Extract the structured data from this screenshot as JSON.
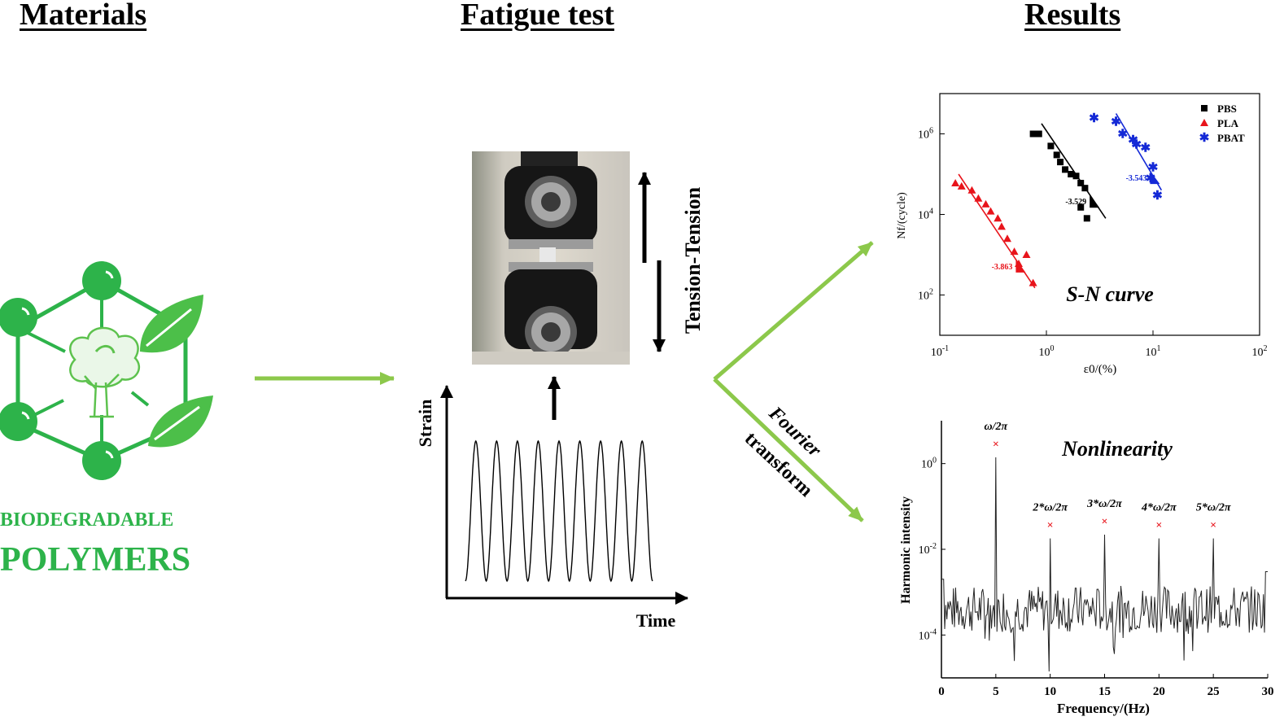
{
  "headers": {
    "materials": "Materials",
    "fatigue": "Fatigue test",
    "results": "Results"
  },
  "materials": {
    "line1": "BIODEGRADABLE",
    "line2": "POLYMERS",
    "color": "#2db34a",
    "leaf_color": "#4cbf49"
  },
  "fatigue": {
    "mode_label": "Tension-Tension",
    "y_axis": "Strain",
    "x_axis": "Time",
    "cycles": 9
  },
  "fourier": {
    "line1": "Fourier",
    "line2": "transform"
  },
  "arrow_color": "#8cc84b",
  "chart_data": [
    {
      "type": "scatter",
      "title": "S-N curve",
      "xlabel": "ε0/(%)",
      "ylabel": "Nf/(cycle)",
      "xscale": "log",
      "yscale": "log",
      "xlim": [
        0.1,
        100
      ],
      "ylim": [
        10,
        10000000
      ],
      "xticks": [
        "10-1",
        "100",
        "101",
        "102"
      ],
      "yticks": [
        "102",
        "104",
        "106"
      ],
      "legend_position": "top-right",
      "series": [
        {
          "name": "PBS",
          "marker": "square",
          "color": "#000000",
          "points": [
            [
              0.75,
              1000000
            ],
            [
              0.85,
              1000000
            ],
            [
              1.1,
              500000
            ],
            [
              1.25,
              300000
            ],
            [
              1.35,
              200000
            ],
            [
              1.5,
              130000
            ],
            [
              1.7,
              100000
            ],
            [
              1.9,
              90000
            ],
            [
              2.1,
              60000
            ],
            [
              2.3,
              45000
            ],
            [
              2.1,
              15000
            ],
            [
              2.4,
              8000
            ]
          ],
          "fit": [
            [
              0.9,
              1800000
            ],
            [
              3.6,
              8000
            ]
          ],
          "slope_label": "-3.529"
        },
        {
          "name": "PLA",
          "marker": "triangle",
          "color": "#e8141b",
          "points": [
            [
              0.14,
              60000
            ],
            [
              0.16,
              50000
            ],
            [
              0.2,
              40000
            ],
            [
              0.23,
              25000
            ],
            [
              0.27,
              18000
            ],
            [
              0.3,
              12000
            ],
            [
              0.35,
              8000
            ],
            [
              0.38,
              5000
            ],
            [
              0.43,
              2500
            ],
            [
              0.5,
              1200
            ],
            [
              0.55,
              600
            ],
            [
              0.65,
              1000
            ],
            [
              0.75,
              200
            ]
          ],
          "fit": [
            [
              0.15,
              100000
            ],
            [
              0.78,
              150
            ]
          ],
          "slope_label": "-3.863"
        },
        {
          "name": "PBAT",
          "marker": "star",
          "color": "#1429d6",
          "points": [
            [
              2.8,
              2500000
            ],
            [
              4.5,
              2000000
            ],
            [
              5.2,
              1000000
            ],
            [
              6.5,
              700000
            ],
            [
              7.0,
              550000
            ],
            [
              8.5,
              450000
            ],
            [
              10.0,
              150000
            ],
            [
              9.5,
              80000
            ],
            [
              11.0,
              30000
            ]
          ],
          "fit": [
            [
              4.5,
              3200000
            ],
            [
              12.0,
              40000
            ]
          ],
          "slope_label": "-3.543"
        }
      ]
    },
    {
      "type": "line",
      "title": "Nonlinearity",
      "xlabel": "Frequency/(Hz)",
      "ylabel": "Harmonic intensity",
      "yscale": "log",
      "xlim": [
        0,
        30
      ],
      "ylim": [
        1e-05,
        10
      ],
      "xticks": [
        0,
        5,
        10,
        15,
        20,
        25,
        30
      ],
      "yticks": [
        "100",
        "10-2",
        "10-4"
      ],
      "series": [
        {
          "name": "",
          "peaks": [
            {
              "x": 5,
              "y": 1.4,
              "label": "ω/2π"
            },
            {
              "x": 10,
              "y": 0.018,
              "label": "2*ω/2π"
            },
            {
              "x": 15,
              "y": 0.022,
              "label": "3*ω/2π"
            },
            {
              "x": 20,
              "y": 0.018,
              "label": "4*ω/2π"
            },
            {
              "x": 25,
              "y": 0.018,
              "label": "5*ω/2π"
            }
          ],
          "noise_floor": 0.0004
        }
      ]
    }
  ]
}
